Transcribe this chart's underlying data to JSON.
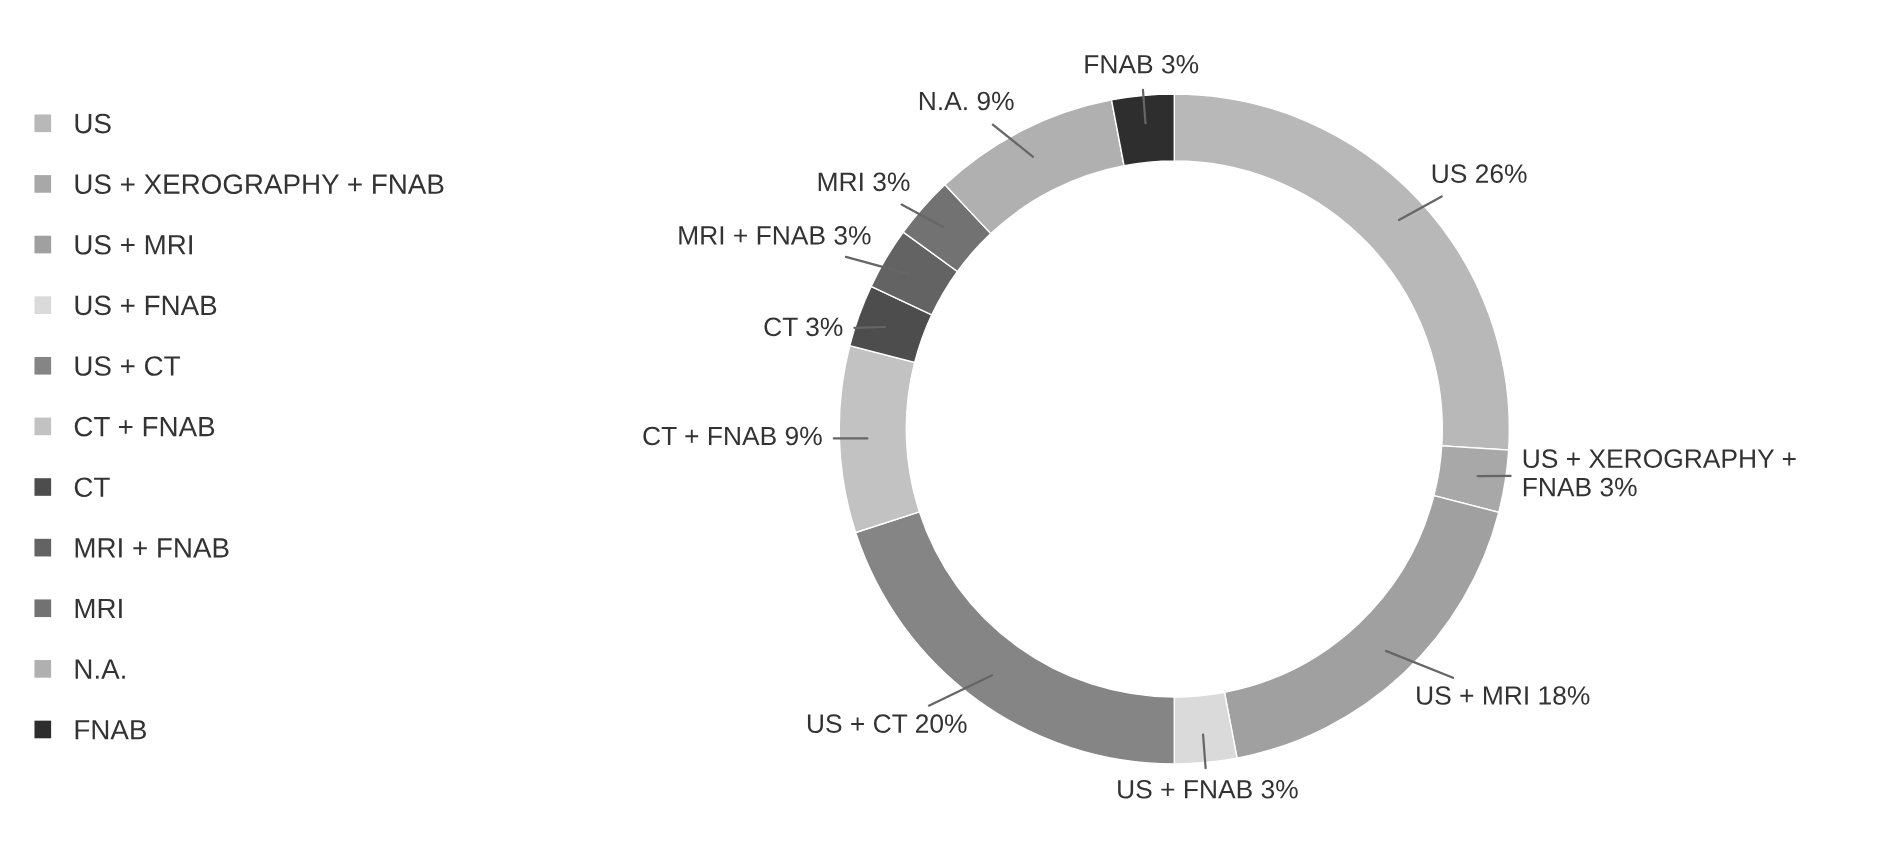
{
  "chart_data": {
    "type": "donut",
    "categories": [
      "US",
      "US + XEROGRAPHY + FNAB",
      "US + MRI",
      "US + FNAB",
      "US + CT",
      "CT + FNAB",
      "CT",
      "MRI + FNAB",
      "MRI",
      "N.A.",
      "FNAB"
    ],
    "values": [
      26,
      3,
      18,
      3,
      20,
      9,
      3,
      3,
      3,
      9,
      3
    ],
    "value_labels": [
      "US 26%",
      "US + XEROGRAPHY +\nFNAB 3%",
      "US + MRI 18%",
      "US + FNAB 3%",
      "US + CT 20%",
      "CT + FNAB 9%",
      "CT 3%",
      "MRI + FNAB 3%",
      "MRI 3%",
      "N.A. 9%",
      "FNAB 3%"
    ],
    "colors": [
      "#b8b8b8",
      "#a8a8a8",
      "#a0a0a0",
      "#dadada",
      "#858585",
      "#c2c2c2",
      "#4d4d4d",
      "#636363",
      "#727272",
      "#b0b0b0",
      "#2e2e2e"
    ],
    "legend": "left"
  }
}
